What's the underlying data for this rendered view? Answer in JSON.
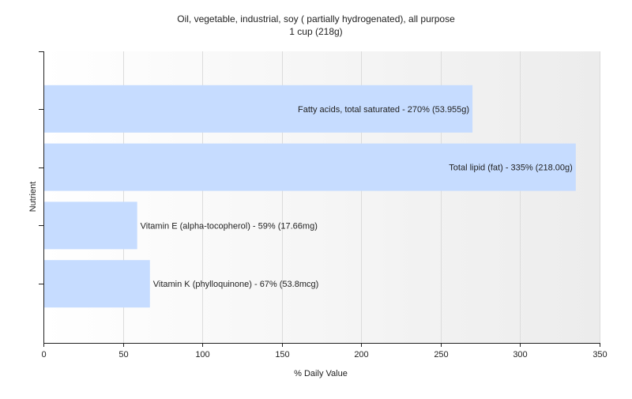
{
  "chart_data": {
    "type": "bar",
    "orientation": "horizontal",
    "title": "Oil, vegetable, industrial, soy ( partially hydrogenated), all purpose",
    "subtitle": "1 cup (218g)",
    "xlabel": "% Daily Value",
    "ylabel": "Nutrient",
    "xlim": [
      0,
      350
    ],
    "xticks": [
      0,
      50,
      100,
      150,
      200,
      250,
      300,
      350
    ],
    "grid": "vertical",
    "bar_color": "#c6dcff",
    "categories": [
      "Fatty acids, total saturated",
      "Total lipid (fat)",
      "Vitamin E (alpha-tocopherol)",
      "Vitamin K (phylloquinone)"
    ],
    "values": [
      270,
      335,
      59,
      67
    ],
    "labels": [
      "Fatty acids, total saturated - 270% (53.955g)",
      "Total lipid (fat) - 335% (218.00g)",
      "Vitamin E (alpha-tocopherol) - 59% (17.66mg)",
      "Vitamin K (phylloquinone) - 67% (53.8mcg)"
    ]
  }
}
